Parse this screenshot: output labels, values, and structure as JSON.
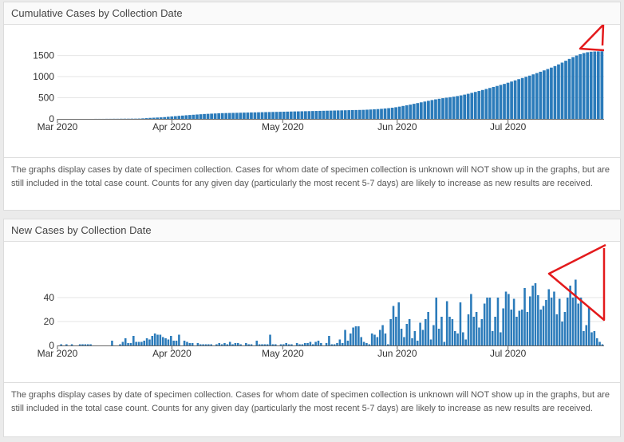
{
  "panels": [
    {
      "title": "Cumulative Cases by Collection Date",
      "note": "The graphs display cases by date of specimen collection. Cases for whom date of specimen collection is unknown will NOT show up in the graphs, but are still included in the total case count. Counts for any given day (particularly the most recent 5-7 days) are likely to increase as new results are received."
    },
    {
      "title": "New Cases by Collection Date",
      "note": "The graphs display cases by date of specimen collection. Cases for whom date of specimen collection is unknown will NOT show up in the graphs, but are still included in the total case count. Counts for any given day (particularly the most recent 5-7 days) are likely to increase as new results are received."
    }
  ],
  "colors": {
    "bar": "#2b7bba",
    "axis": "#666666",
    "grid": "#e6e6e6",
    "annotation": "#e31a1c"
  },
  "chart_data": [
    {
      "type": "bar",
      "x_start": "2020-03-01",
      "x_end": "2020-07-27",
      "x_tick_labels": [
        "Mar 2020",
        "Apr 2020",
        "May 2020",
        "Jun 2020",
        "Jul 2020"
      ],
      "y_ticks": [
        "0",
        "500",
        "1000",
        "1500"
      ],
      "ylim": [
        0,
        1700
      ],
      "title": "Cumulative Cases by Collection Date",
      "start_nonzero_date": "2020-03-11",
      "values": [
        1,
        1,
        1,
        2,
        2,
        3,
        3,
        4,
        5,
        5,
        6,
        6,
        8,
        12,
        18,
        24,
        28,
        32,
        36,
        42,
        50,
        58,
        64,
        72,
        78,
        86,
        92,
        98,
        104,
        110,
        116,
        120,
        124,
        128,
        132,
        136,
        138,
        140,
        142,
        144,
        146,
        148,
        150,
        152,
        154,
        156,
        158,
        160,
        162,
        164,
        166,
        168,
        170,
        172,
        174,
        176,
        178,
        180,
        182,
        184,
        186,
        188,
        190,
        192,
        194,
        196,
        198,
        200,
        202,
        204,
        206,
        208,
        210,
        212,
        214,
        218,
        222,
        226,
        232,
        238,
        246,
        254,
        264,
        276,
        290,
        306,
        322,
        338,
        356,
        374,
        392,
        410,
        428,
        446,
        462,
        476,
        490,
        502,
        514,
        526,
        540,
        556,
        574,
        594,
        616,
        638,
        660,
        684,
        708,
        732,
        756,
        780,
        804,
        828,
        856,
        884,
        912,
        940,
        968,
        996,
        1024,
        1054,
        1084,
        1116,
        1148,
        1180,
        1214,
        1250,
        1290,
        1332,
        1376,
        1420,
        1462,
        1500,
        1532,
        1558,
        1578,
        1590,
        1596,
        1598,
        1600
      ]
    },
    {
      "type": "bar",
      "x_start": "2020-03-01",
      "x_end": "2020-07-27",
      "x_tick_labels": [
        "Mar 2020",
        "Apr 2020",
        "May 2020",
        "Jun 2020",
        "Jul 2020"
      ],
      "y_ticks": [
        "0",
        "20",
        "40"
      ],
      "ylim": [
        0,
        60
      ],
      "title": "New Cases by Collection Date",
      "values": [
        0,
        1,
        0,
        1,
        0,
        1,
        0,
        0,
        1,
        1,
        1,
        1,
        1,
        0,
        0,
        0,
        0,
        0,
        0,
        0,
        4,
        0,
        0,
        1,
        3,
        6,
        2,
        2,
        8,
        3,
        3,
        3,
        4,
        6,
        5,
        8,
        10,
        9,
        9,
        7,
        6,
        5,
        8,
        4,
        4,
        9,
        0,
        4,
        3,
        2,
        2,
        0,
        2,
        1,
        1,
        1,
        1,
        1,
        0,
        1,
        2,
        1,
        2,
        1,
        3,
        1,
        2,
        2,
        1,
        0,
        2,
        1,
        1,
        0,
        4,
        1,
        1,
        1,
        1,
        9,
        1,
        1,
        0,
        1,
        1,
        2,
        1,
        1,
        0,
        2,
        1,
        1,
        2,
        2,
        3,
        1,
        3,
        4,
        2,
        0,
        2,
        8,
        1,
        1,
        2,
        5,
        2,
        13,
        4,
        10,
        15,
        16,
        16,
        7,
        3,
        2,
        1,
        10,
        9,
        7,
        13,
        17,
        10,
        1,
        22,
        33,
        24,
        36,
        14,
        7,
        18,
        22,
        6,
        12,
        4,
        19,
        13,
        22,
        28,
        5,
        17,
        40,
        14,
        24,
        3,
        37,
        24,
        22,
        12,
        10,
        36,
        11,
        5,
        26,
        43,
        24,
        28,
        15,
        22,
        35,
        40,
        40,
        12,
        24,
        40,
        11,
        31,
        45,
        43,
        30,
        39,
        24,
        29,
        30,
        48,
        28,
        41,
        50,
        52,
        42,
        30,
        33,
        38,
        47,
        40,
        45,
        26,
        39,
        20,
        28,
        40,
        50,
        40,
        55,
        35,
        40,
        12,
        17,
        32,
        11,
        12,
        6,
        3,
        1
      ]
    }
  ]
}
